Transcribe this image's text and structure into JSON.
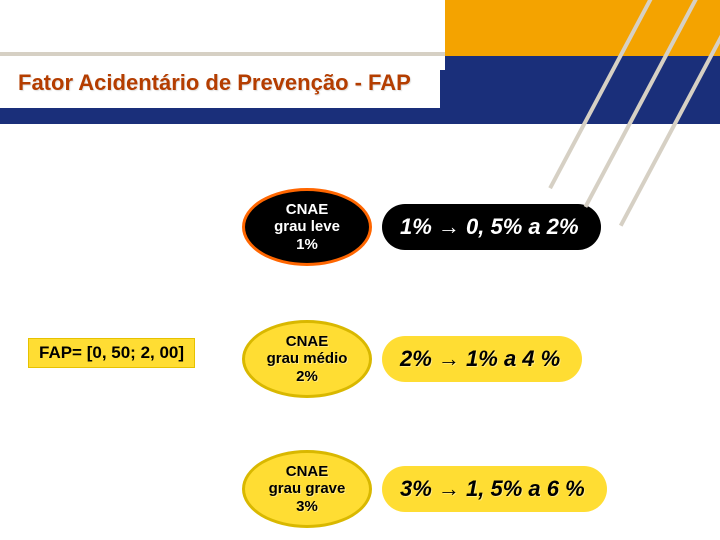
{
  "title": "Fator Acidentário de Prevenção - FAP",
  "fap_range": "FAP= [0, 50; 2, 00]",
  "rows": [
    {
      "cnae_l1": "CNAE",
      "cnae_l2": "grau leve",
      "cnae_l3": "1%",
      "pill_before": "1% ",
      "pill_after": " 0, 5% a 2%",
      "ellipse_style": "dark",
      "pill_style": "dark"
    },
    {
      "cnae_l1": "CNAE",
      "cnae_l2": "grau médio",
      "cnae_l3": "2%",
      "pill_before": "2% ",
      "pill_after": " 1% a 4 %",
      "ellipse_style": "yellow",
      "pill_style": "yellow"
    },
    {
      "cnae_l1": "CNAE",
      "cnae_l2": "grau grave",
      "cnae_l3": "3%",
      "pill_before": "3% ",
      "pill_after": " 1, 5% a  6 %",
      "ellipse_style": "yellow",
      "pill_style": "yellow"
    }
  ],
  "colors": {
    "title_color": "#b43d00",
    "blue": "#1a2f7a",
    "orange": "#f4a300",
    "yellow": "#ffdd33",
    "grey_line": "#d6d0c4"
  },
  "arrow_glyph": "→"
}
